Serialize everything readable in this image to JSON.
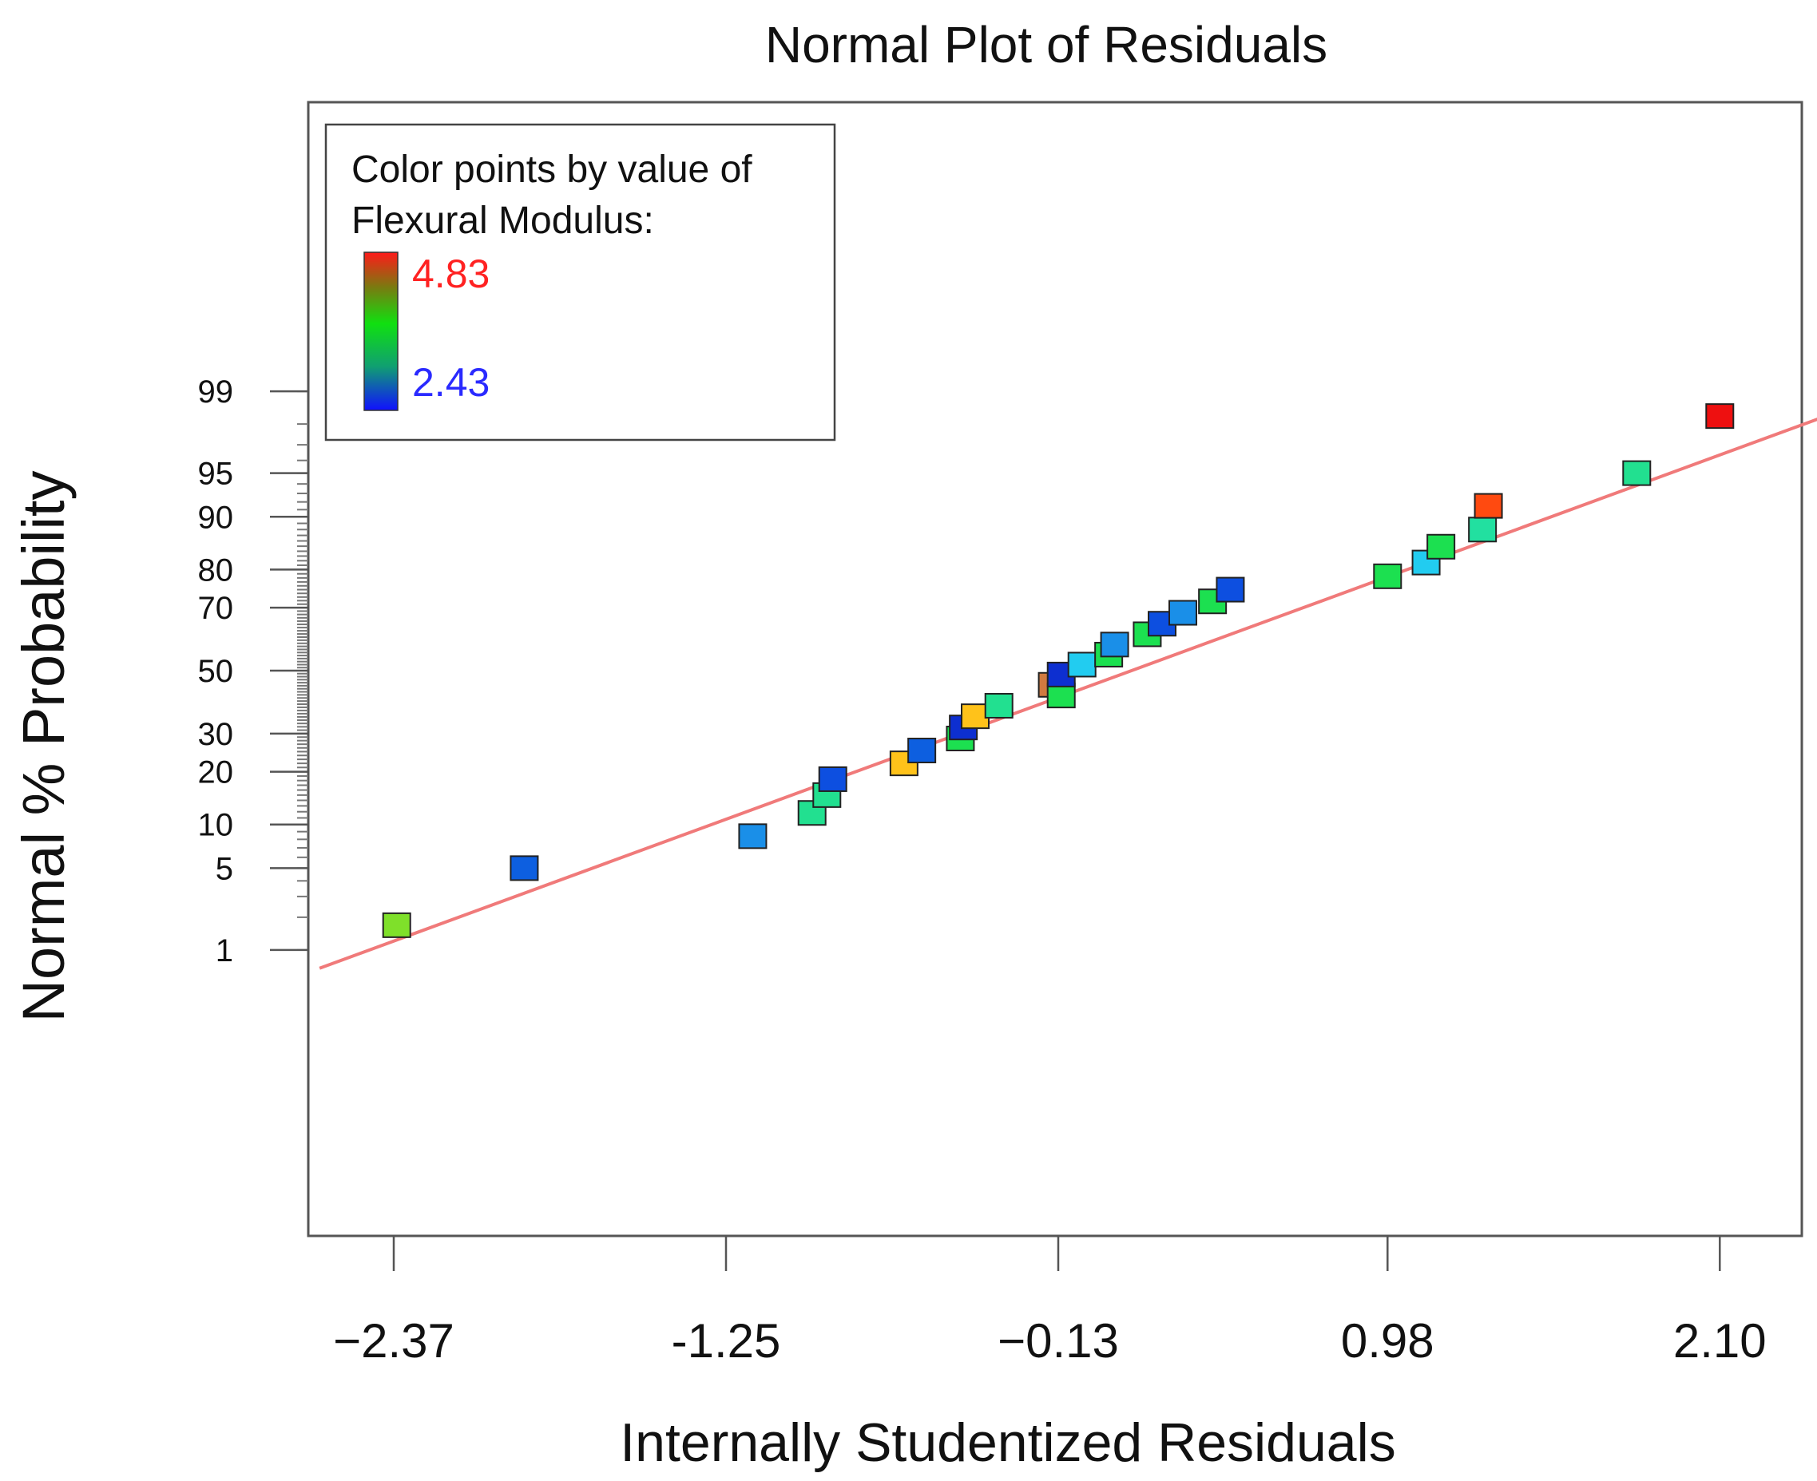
{
  "chart_data": {
    "type": "scatter",
    "title": "Normal Plot of Residuals",
    "xlabel": "Internally Studentized Residuals",
    "ylabel": "Normal % Probability",
    "xlim": [
      -2.62,
      2.62
    ],
    "y_scale": "normal-probability",
    "x_ticks": [
      {
        "value": -2.37,
        "label": "−2.37"
      },
      {
        "value": -1.25,
        "label": "-1.25"
      },
      {
        "value": -0.13,
        "label": "−0.13"
      },
      {
        "value": 0.98,
        "label": "0.98"
      },
      {
        "value": 2.1,
        "label": "2.10"
      }
    ],
    "y_ticks": [
      {
        "value": 1,
        "label": "1"
      },
      {
        "value": 5,
        "label": "5"
      },
      {
        "value": 10,
        "label": "10"
      },
      {
        "value": 20,
        "label": "20"
      },
      {
        "value": 30,
        "label": "30"
      },
      {
        "value": 50,
        "label": "50"
      },
      {
        "value": 70,
        "label": "70"
      },
      {
        "value": 80,
        "label": "80"
      },
      {
        "value": 90,
        "label": "90"
      },
      {
        "value": 95,
        "label": "95"
      },
      {
        "value": 99,
        "label": "99"
      }
    ],
    "legend": {
      "title_line1": "Color points by value of",
      "title_line2": "Flexural Modulus:",
      "max_label": "4.83",
      "min_label": "2.43",
      "max_value": 4.83,
      "min_value": 2.43,
      "placement": "top-left"
    },
    "reference_line": {
      "x": [
        -2.62,
        2.62
      ],
      "y": [
        0.66,
        98.83
      ],
      "color": "#f07a7a"
    },
    "points": [
      {
        "x": -2.36,
        "y": 1.7,
        "color": "#7fe02a"
      },
      {
        "x": -1.93,
        "y": 5.0,
        "color": "#0d5fe0"
      },
      {
        "x": -1.16,
        "y": 8.4,
        "color": "#1a8fe8"
      },
      {
        "x": -0.96,
        "y": 11.8,
        "color": "#22e090"
      },
      {
        "x": -0.91,
        "y": 15.0,
        "color": "#22e090"
      },
      {
        "x": -0.89,
        "y": 18.3,
        "color": "#0d4fe0"
      },
      {
        "x": -0.65,
        "y": 22.0,
        "color": "#ffc21a"
      },
      {
        "x": -0.59,
        "y": 25.3,
        "color": "#0d5fe0"
      },
      {
        "x": -0.46,
        "y": 28.6,
        "color": "#1ce050"
      },
      {
        "x": -0.45,
        "y": 31.8,
        "color": "#0d2fd0"
      },
      {
        "x": -0.41,
        "y": 35.2,
        "color": "#ffc21a"
      },
      {
        "x": -0.33,
        "y": 38.5,
        "color": "#22e090"
      },
      {
        "x": -0.15,
        "y": 45.3,
        "color": "#d07a40"
      },
      {
        "x": -0.12,
        "y": 41.8,
        "color": "#1ce050"
      },
      {
        "x": -0.12,
        "y": 48.7,
        "color": "#0d2fd0"
      },
      {
        "x": -0.05,
        "y": 52.0,
        "color": "#22ccf0"
      },
      {
        "x": 0.04,
        "y": 55.3,
        "color": "#1ce050"
      },
      {
        "x": 0.06,
        "y": 58.6,
        "color": "#1a8fe8"
      },
      {
        "x": 0.17,
        "y": 61.9,
        "color": "#1ce050"
      },
      {
        "x": 0.22,
        "y": 65.2,
        "color": "#0d4fe0"
      },
      {
        "x": 0.29,
        "y": 68.5,
        "color": "#1a8fe8"
      },
      {
        "x": 0.39,
        "y": 71.8,
        "color": "#1ce050"
      },
      {
        "x": 0.45,
        "y": 75.0,
        "color": "#0d4fe0"
      },
      {
        "x": 0.98,
        "y": 78.4,
        "color": "#1ce050"
      },
      {
        "x": 1.11,
        "y": 81.6,
        "color": "#22ccf0"
      },
      {
        "x": 1.16,
        "y": 84.9,
        "color": "#1ce050"
      },
      {
        "x": 1.3,
        "y": 88.0,
        "color": "#22e0a0"
      },
      {
        "x": 1.32,
        "y": 91.5,
        "color": "#ff4a10"
      },
      {
        "x": 1.82,
        "y": 95.0,
        "color": "#22e090"
      },
      {
        "x": 2.1,
        "y": 98.3,
        "color": "#ee1010"
      }
    ]
  }
}
